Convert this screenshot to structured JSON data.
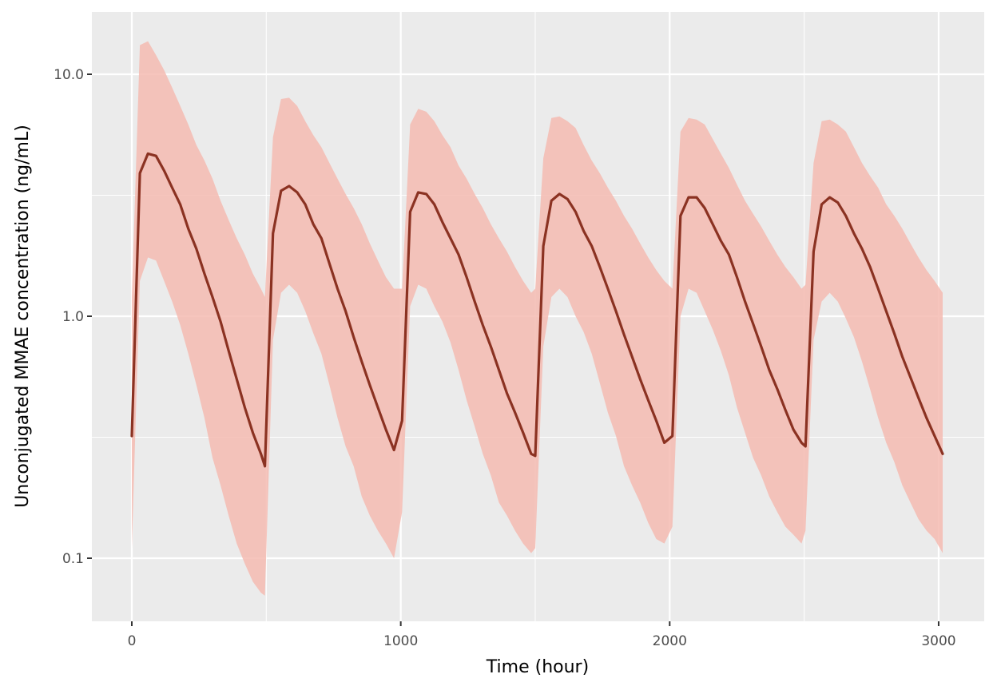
{
  "chart_data": {
    "type": "line",
    "title": "",
    "xlabel": "Time (hour)",
    "ylabel": "Unconjugated MMAE concentration (ng/mL)",
    "x_scale": "linear",
    "y_scale": "log10",
    "xlim": [
      -150,
      3150
    ],
    "ylim": [
      0.055,
      18
    ],
    "x_ticks": [
      0,
      1000,
      2000,
      3000
    ],
    "x_tick_labels": [
      "0",
      "1000",
      "2000",
      "3000"
    ],
    "y_ticks": [
      0.1,
      1.0,
      10.0
    ],
    "y_tick_labels": [
      "0.1",
      "1.0",
      "10.0"
    ],
    "grid": true,
    "legend": "none",
    "colors": {
      "panel_background": "#ebebeb",
      "grid": "#ffffff",
      "median_line": "#8b3222",
      "ribbon": "#f4bbb2"
    },
    "series": [
      {
        "name": "median",
        "kind": "line",
        "x": [
          0,
          30,
          60,
          90,
          120,
          150,
          180,
          210,
          240,
          270,
          300,
          330,
          360,
          390,
          420,
          450,
          480,
          495,
          525,
          555,
          585,
          615,
          645,
          675,
          705,
          735,
          765,
          795,
          825,
          855,
          885,
          915,
          945,
          975,
          1005,
          1035,
          1065,
          1095,
          1125,
          1155,
          1185,
          1215,
          1245,
          1275,
          1305,
          1335,
          1365,
          1395,
          1425,
          1455,
          1485,
          1500,
          1530,
          1560,
          1590,
          1620,
          1650,
          1680,
          1710,
          1740,
          1770,
          1800,
          1830,
          1860,
          1890,
          1920,
          1950,
          1980,
          2010,
          2040,
          2070,
          2100,
          2130,
          2160,
          2190,
          2220,
          2250,
          2280,
          2310,
          2340,
          2370,
          2400,
          2430,
          2460,
          2490,
          2505,
          2535,
          2565,
          2595,
          2625,
          2655,
          2685,
          2715,
          2745,
          2775,
          2805,
          2835,
          2865,
          2895,
          2925,
          2955,
          2985,
          3015
        ],
        "values": [
          0.32,
          3.9,
          4.7,
          4.6,
          4.0,
          3.4,
          2.9,
          2.3,
          1.9,
          1.5,
          1.2,
          0.95,
          0.72,
          0.55,
          0.42,
          0.33,
          0.27,
          0.24,
          2.2,
          3.3,
          3.45,
          3.25,
          2.9,
          2.4,
          2.1,
          1.65,
          1.3,
          1.05,
          0.82,
          0.65,
          0.52,
          0.42,
          0.34,
          0.28,
          0.37,
          2.7,
          3.25,
          3.2,
          2.9,
          2.45,
          2.1,
          1.8,
          1.45,
          1.15,
          0.92,
          0.75,
          0.6,
          0.48,
          0.4,
          0.33,
          0.27,
          0.265,
          1.95,
          3.0,
          3.2,
          3.05,
          2.7,
          2.25,
          1.95,
          1.6,
          1.3,
          1.05,
          0.84,
          0.68,
          0.55,
          0.45,
          0.37,
          0.3,
          0.32,
          2.6,
          3.1,
          3.1,
          2.8,
          2.4,
          2.05,
          1.8,
          1.45,
          1.15,
          0.93,
          0.75,
          0.6,
          0.5,
          0.41,
          0.34,
          0.3,
          0.29,
          1.85,
          2.9,
          3.1,
          2.95,
          2.6,
          2.2,
          1.9,
          1.6,
          1.3,
          1.05,
          0.85,
          0.68,
          0.56,
          0.46,
          0.38,
          0.32,
          0.27
        ]
      },
      {
        "name": "upper",
        "kind": "ribbon_upper",
        "x": [
          0,
          30,
          60,
          90,
          120,
          150,
          180,
          210,
          240,
          270,
          300,
          330,
          360,
          390,
          420,
          450,
          480,
          495,
          525,
          555,
          585,
          615,
          645,
          675,
          705,
          735,
          765,
          795,
          825,
          855,
          885,
          915,
          945,
          975,
          1005,
          1035,
          1065,
          1095,
          1125,
          1155,
          1185,
          1215,
          1245,
          1275,
          1305,
          1335,
          1365,
          1395,
          1425,
          1455,
          1485,
          1500,
          1530,
          1560,
          1590,
          1620,
          1650,
          1680,
          1710,
          1740,
          1770,
          1800,
          1830,
          1860,
          1890,
          1920,
          1950,
          1980,
          2010,
          2040,
          2070,
          2100,
          2130,
          2160,
          2190,
          2220,
          2250,
          2280,
          2310,
          2340,
          2370,
          2400,
          2430,
          2460,
          2490,
          2505,
          2535,
          2565,
          2595,
          2625,
          2655,
          2685,
          2715,
          2745,
          2775,
          2805,
          2835,
          2865,
          2895,
          2925,
          2955,
          2985,
          3015
        ],
        "values": [
          1.2,
          13.2,
          13.7,
          12.0,
          10.4,
          8.8,
          7.4,
          6.2,
          5.1,
          4.4,
          3.7,
          3.0,
          2.5,
          2.1,
          1.8,
          1.5,
          1.3,
          1.2,
          5.5,
          7.9,
          8.0,
          7.4,
          6.4,
          5.6,
          5.0,
          4.3,
          3.7,
          3.2,
          2.8,
          2.4,
          2.0,
          1.7,
          1.45,
          1.3,
          1.3,
          6.2,
          7.2,
          7.0,
          6.4,
          5.6,
          5.0,
          4.2,
          3.7,
          3.2,
          2.8,
          2.4,
          2.1,
          1.85,
          1.6,
          1.4,
          1.25,
          1.3,
          4.5,
          6.6,
          6.7,
          6.4,
          6.0,
          5.1,
          4.4,
          3.9,
          3.4,
          3.0,
          2.6,
          2.3,
          2.0,
          1.75,
          1.55,
          1.4,
          1.3,
          5.8,
          6.6,
          6.5,
          6.2,
          5.4,
          4.7,
          4.1,
          3.5,
          3.0,
          2.65,
          2.35,
          2.05,
          1.8,
          1.6,
          1.45,
          1.3,
          1.35,
          4.3,
          6.4,
          6.5,
          6.2,
          5.8,
          5.0,
          4.3,
          3.8,
          3.4,
          2.9,
          2.6,
          2.3,
          2.0,
          1.75,
          1.55,
          1.4,
          1.25
        ]
      },
      {
        "name": "lower",
        "kind": "ribbon_lower",
        "x": [
          0,
          30,
          60,
          90,
          120,
          150,
          180,
          210,
          240,
          270,
          300,
          330,
          360,
          390,
          420,
          450,
          480,
          495,
          525,
          555,
          585,
          615,
          645,
          675,
          705,
          735,
          765,
          795,
          825,
          855,
          885,
          915,
          945,
          975,
          1005,
          1035,
          1065,
          1095,
          1125,
          1155,
          1185,
          1215,
          1245,
          1275,
          1305,
          1335,
          1365,
          1395,
          1425,
          1455,
          1485,
          1500,
          1530,
          1560,
          1590,
          1620,
          1650,
          1680,
          1710,
          1740,
          1770,
          1800,
          1830,
          1860,
          1890,
          1920,
          1950,
          1980,
          2010,
          2040,
          2070,
          2100,
          2130,
          2160,
          2190,
          2220,
          2250,
          2280,
          2310,
          2340,
          2370,
          2400,
          2430,
          2460,
          2490,
          2505,
          2535,
          2565,
          2595,
          2625,
          2655,
          2685,
          2715,
          2745,
          2775,
          2805,
          2835,
          2865,
          2895,
          2925,
          2955,
          2985,
          3015
        ],
        "values": [
          0.11,
          1.4,
          1.75,
          1.7,
          1.4,
          1.15,
          0.92,
          0.7,
          0.52,
          0.38,
          0.26,
          0.2,
          0.15,
          0.115,
          0.095,
          0.08,
          0.072,
          0.07,
          0.8,
          1.25,
          1.35,
          1.25,
          1.05,
          0.85,
          0.7,
          0.52,
          0.38,
          0.29,
          0.24,
          0.18,
          0.15,
          0.13,
          0.115,
          0.1,
          0.155,
          1.1,
          1.35,
          1.3,
          1.1,
          0.95,
          0.78,
          0.6,
          0.45,
          0.35,
          0.27,
          0.22,
          0.17,
          0.15,
          0.13,
          0.115,
          0.105,
          0.11,
          0.75,
          1.2,
          1.3,
          1.2,
          1.0,
          0.86,
          0.7,
          0.53,
          0.4,
          0.32,
          0.24,
          0.2,
          0.17,
          0.14,
          0.12,
          0.115,
          0.135,
          1.0,
          1.3,
          1.25,
          1.05,
          0.88,
          0.72,
          0.57,
          0.42,
          0.33,
          0.26,
          0.22,
          0.18,
          0.155,
          0.135,
          0.125,
          0.115,
          0.13,
          0.8,
          1.15,
          1.25,
          1.15,
          0.98,
          0.82,
          0.65,
          0.5,
          0.38,
          0.3,
          0.25,
          0.2,
          0.17,
          0.145,
          0.13,
          0.12,
          0.105
        ]
      }
    ]
  },
  "axes": {
    "x_title": "Time (hour)",
    "y_title": "Unconjugated MMAE concentration (ng/mL)",
    "x_tick_labels": [
      "0",
      "1000",
      "2000",
      "3000"
    ],
    "y_tick_labels": [
      "0.1",
      "1.0",
      "10.0"
    ]
  }
}
